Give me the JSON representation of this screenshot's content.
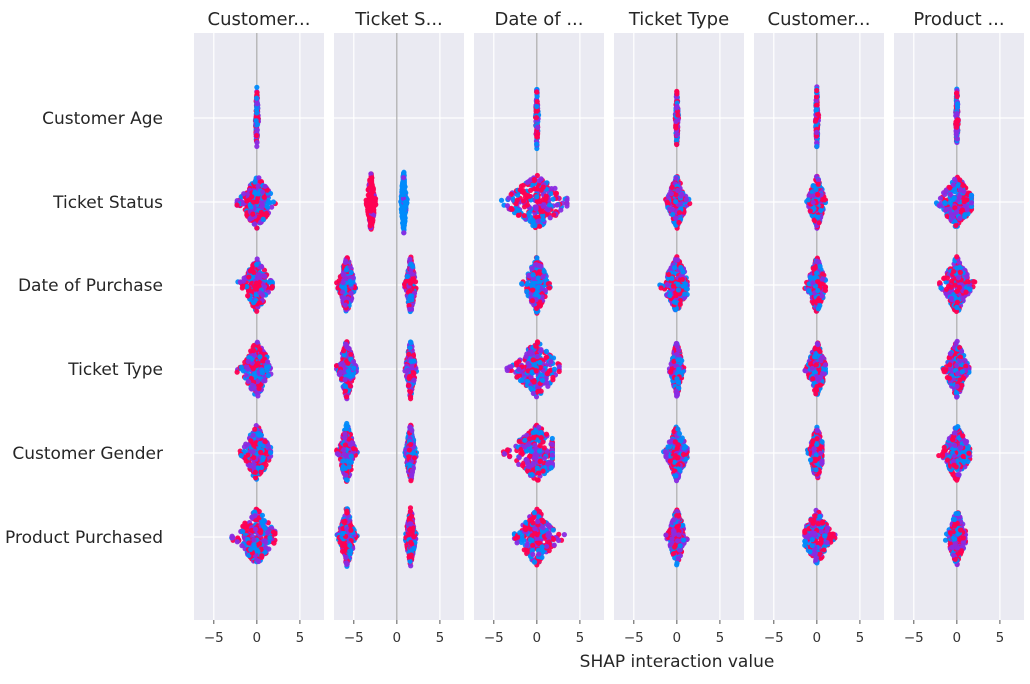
{
  "chart_data": {
    "type": "scatter",
    "subtype": "shap-interaction-summary",
    "xlabel": "SHAP interaction value",
    "xlim": [
      -7.3,
      7.8
    ],
    "xticks": [
      -5,
      0,
      5
    ],
    "xtick_labels": [
      "−5",
      "0",
      "5"
    ],
    "grid": true,
    "colors": {
      "low": "#008bfb",
      "mid": "#8a2be2",
      "high": "#ff0051",
      "panel_bg": "#eaeaf2",
      "grid": "#ffffff"
    },
    "features": [
      "Customer Age",
      "Ticket Status",
      "Date of Purchase",
      "Ticket Type",
      "Customer Gender",
      "Product Purchased"
    ],
    "panels": [
      {
        "title": "Customer...",
        "rows": [
          {
            "feature": "Customer Age",
            "center": 0,
            "min": -0.2,
            "max": 0.2,
            "yspread": 0.38,
            "color": "mixed"
          },
          {
            "feature": "Ticket Status",
            "center": 0,
            "min": -2.3,
            "max": 2.6,
            "yspread": 0.32,
            "color": "mixed"
          },
          {
            "feature": "Date of Purchase",
            "center": 0,
            "min": -2.2,
            "max": 1.8,
            "yspread": 0.32,
            "color": "mixed"
          },
          {
            "feature": "Ticket Type",
            "center": 0,
            "min": -2.3,
            "max": 2.2,
            "yspread": 0.34,
            "color": "mixed"
          },
          {
            "feature": "Customer Gender",
            "center": 0,
            "min": -2.2,
            "max": 1.6,
            "yspread": 0.34,
            "color": "mixed"
          },
          {
            "feature": "Product Purchased",
            "center": 0,
            "min": -3.0,
            "max": 2.1,
            "yspread": 0.34,
            "color": "mixed"
          }
        ]
      },
      {
        "title": "Ticket S...",
        "rows": [
          {
            "feature": "Customer Age",
            "center": 0,
            "min": 0,
            "max": 0,
            "yspread": 0,
            "color": "none"
          },
          {
            "feature": "Ticket Status",
            "clusters": [
              {
                "center": -3.0,
                "min": -3.6,
                "max": -2.4,
                "yspread": 0.36,
                "color": "high"
              },
              {
                "center": 0.8,
                "min": 0.4,
                "max": 1.2,
                "yspread": 0.38,
                "color": "low"
              }
            ]
          },
          {
            "feature": "Date of Purchase",
            "clusters": [
              {
                "center": -5.8,
                "min": -7.0,
                "max": -4.6,
                "yspread": 0.36,
                "color": "mixed"
              },
              {
                "center": 1.6,
                "min": 0.9,
                "max": 2.3,
                "yspread": 0.36,
                "color": "mixed"
              }
            ]
          },
          {
            "feature": "Ticket Type",
            "clusters": [
              {
                "center": -5.8,
                "min": -7.0,
                "max": -4.6,
                "yspread": 0.36,
                "color": "mixed"
              },
              {
                "center": 1.6,
                "min": 0.9,
                "max": 2.3,
                "yspread": 0.36,
                "color": "mixed"
              }
            ]
          },
          {
            "feature": "Customer Gender",
            "clusters": [
              {
                "center": -5.8,
                "min": -7.0,
                "max": -4.6,
                "yspread": 0.36,
                "color": "mixed"
              },
              {
                "center": 1.6,
                "min": 0.9,
                "max": 2.3,
                "yspread": 0.36,
                "color": "mixed"
              }
            ]
          },
          {
            "feature": "Product Purchased",
            "clusters": [
              {
                "center": -5.8,
                "min": -7.0,
                "max": -4.6,
                "yspread": 0.36,
                "color": "mixed"
              },
              {
                "center": 1.6,
                "min": 0.9,
                "max": 2.3,
                "yspread": 0.36,
                "color": "mixed"
              }
            ]
          }
        ]
      },
      {
        "title": "Date of ...",
        "rows": [
          {
            "feature": "Customer Age",
            "center": 0,
            "min": -0.2,
            "max": 0.2,
            "yspread": 0.38,
            "color": "mixed"
          },
          {
            "feature": "Ticket Status",
            "center": 0,
            "min": -4.8,
            "max": 3.5,
            "yspread": 0.32,
            "color": "mixed"
          },
          {
            "feature": "Date of Purchase",
            "center": 0,
            "min": -1.8,
            "max": 1.8,
            "yspread": 0.34,
            "color": "mixed"
          },
          {
            "feature": "Ticket Type",
            "center": 0,
            "min": -3.6,
            "max": 2.6,
            "yspread": 0.34,
            "color": "mixed"
          },
          {
            "feature": "Customer Gender",
            "center": 0,
            "min": -4.1,
            "max": 1.8,
            "yspread": 0.34,
            "color": "mixed"
          },
          {
            "feature": "Product Purchased",
            "center": 0,
            "min": -2.6,
            "max": 3.2,
            "yspread": 0.34,
            "color": "mixed"
          }
        ]
      },
      {
        "title": "Ticket Type",
        "rows": [
          {
            "feature": "Customer Age",
            "center": 0,
            "min": -0.2,
            "max": 0.2,
            "yspread": 0.38,
            "color": "mixed"
          },
          {
            "feature": "Ticket Status",
            "center": 0,
            "min": -1.3,
            "max": 1.5,
            "yspread": 0.32,
            "color": "mixed"
          },
          {
            "feature": "Date of Purchase",
            "center": 0,
            "min": -2.0,
            "max": 1.2,
            "yspread": 0.34,
            "color": "mixed"
          },
          {
            "feature": "Ticket Type",
            "center": 0,
            "min": -0.9,
            "max": 0.8,
            "yspread": 0.34,
            "color": "mixed"
          },
          {
            "feature": "Customer Gender",
            "center": 0,
            "min": -1.6,
            "max": 1.2,
            "yspread": 0.34,
            "color": "mixed"
          },
          {
            "feature": "Product Purchased",
            "center": 0,
            "min": -1.3,
            "max": 1.2,
            "yspread": 0.34,
            "color": "mixed"
          }
        ]
      },
      {
        "title": "Customer...",
        "rows": [
          {
            "feature": "Customer Age",
            "center": 0,
            "min": -0.2,
            "max": 0.2,
            "yspread": 0.38,
            "color": "mixed"
          },
          {
            "feature": "Ticket Status",
            "center": 0,
            "min": -1.3,
            "max": 1.0,
            "yspread": 0.32,
            "color": "mixed"
          },
          {
            "feature": "Date of Purchase",
            "center": 0,
            "min": -1.4,
            "max": 1.0,
            "yspread": 0.34,
            "color": "mixed"
          },
          {
            "feature": "Ticket Type",
            "center": 0,
            "min": -1.4,
            "max": 1.0,
            "yspread": 0.34,
            "color": "mixed"
          },
          {
            "feature": "Customer Gender",
            "center": 0,
            "min": -1.1,
            "max": 0.6,
            "yspread": 0.34,
            "color": "mixed"
          },
          {
            "feature": "Product Purchased",
            "center": 0,
            "min": -1.4,
            "max": 2.2,
            "yspread": 0.34,
            "color": "mixed"
          }
        ]
      },
      {
        "title": "Product ...",
        "rows": [
          {
            "feature": "Customer Age",
            "center": 0,
            "min": -0.2,
            "max": 0.2,
            "yspread": 0.38,
            "color": "mixed"
          },
          {
            "feature": "Ticket Status",
            "center": 0,
            "min": -2.6,
            "max": 1.7,
            "yspread": 0.32,
            "color": "mixed"
          },
          {
            "feature": "Date of Purchase",
            "center": 0,
            "min": -2.0,
            "max": 2.2,
            "yspread": 0.34,
            "color": "mixed"
          },
          {
            "feature": "Ticket Type",
            "center": 0,
            "min": -1.8,
            "max": 1.4,
            "yspread": 0.34,
            "color": "mixed"
          },
          {
            "feature": "Customer Gender",
            "center": 0,
            "min": -2.1,
            "max": 1.5,
            "yspread": 0.34,
            "color": "mixed"
          },
          {
            "feature": "Product Purchased",
            "center": 0,
            "min": -1.4,
            "max": 1.0,
            "yspread": 0.34,
            "color": "mixed"
          }
        ]
      }
    ]
  }
}
